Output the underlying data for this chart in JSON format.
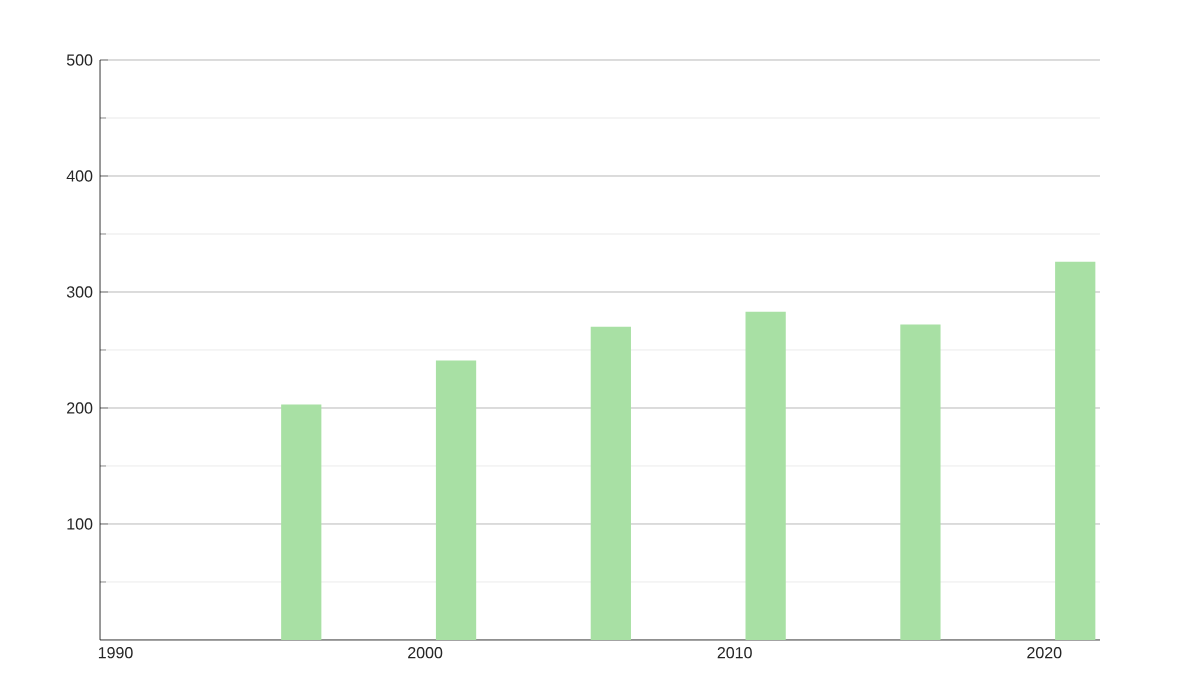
{
  "chart_data": {
    "type": "bar",
    "x": [
      1996,
      2001,
      2006,
      2011,
      2016,
      2021
    ],
    "values": [
      203,
      241,
      270,
      283,
      272,
      326
    ],
    "color": "#a8e0a4",
    "xlim": [
      1989.5,
      2021.8
    ],
    "xticks": [
      1990,
      2000,
      2010,
      2020
    ],
    "ylim": [
      0,
      500
    ],
    "yticks": [
      {
        "value": 50,
        "label": null
      },
      100,
      {
        "value": 150,
        "label": null
      },
      200,
      {
        "value": 250,
        "label": null
      },
      300,
      {
        "value": 350,
        "label": null
      },
      400,
      {
        "value": 450,
        "label": null
      },
      500
    ],
    "grid": "y"
  }
}
